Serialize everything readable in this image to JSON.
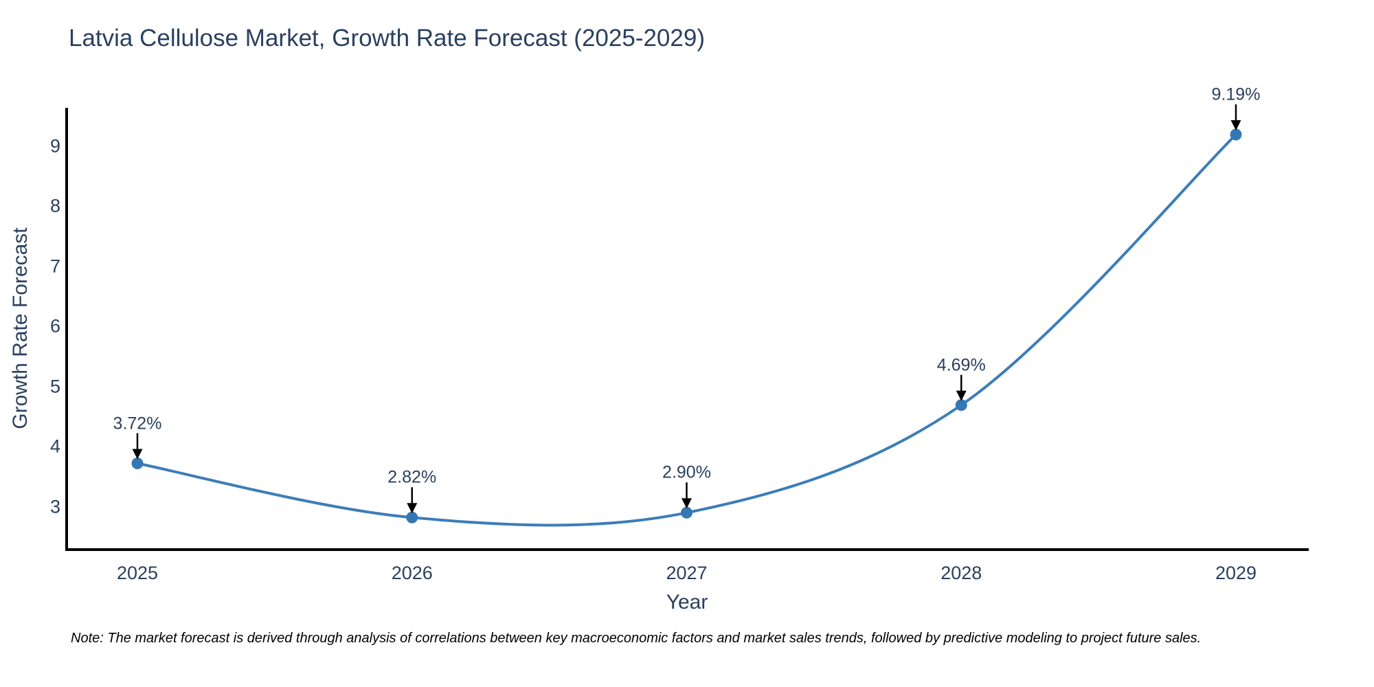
{
  "note": "Note: The market forecast is derived through analysis of correlations between key macroeconomic factors and market sales trends, followed by predictive modeling to project future sales.",
  "colors": {
    "line": "#3c7db8",
    "marker": "#3577b4",
    "text": "#2a3f5f",
    "axis": "#000000",
    "annotation_arrow": "#000000",
    "background": "#ffffff"
  },
  "chart_data": {
    "type": "line",
    "title": "Latvia Cellulose Market, Growth Rate Forecast (2025-2029)",
    "xlabel": "Year",
    "ylabel": "Growth Rate Forecast",
    "categories": [
      "2025",
      "2026",
      "2027",
      "2028",
      "2029"
    ],
    "values": [
      3.72,
      2.82,
      2.9,
      4.69,
      9.19
    ],
    "point_labels": [
      "3.72%",
      "2.82%",
      "2.90%",
      "4.69%",
      "9.19%"
    ],
    "series_name": "Growth Rate Forecast",
    "yticks": [
      3,
      4,
      5,
      6,
      7,
      8,
      9
    ],
    "ylim": [
      2.29,
      9.63
    ],
    "grid": false,
    "legend_position": "none",
    "line_smoothing": "spline",
    "marker_style": "circle"
  }
}
